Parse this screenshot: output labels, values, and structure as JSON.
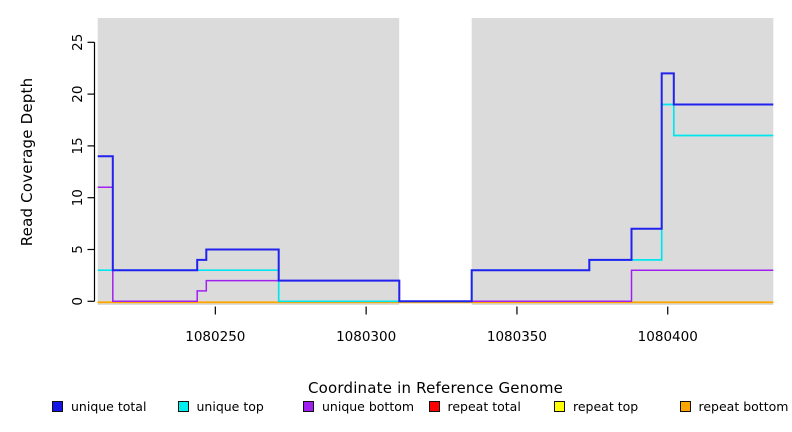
{
  "figure": {
    "background": "#ffffff",
    "panel_color": "#dbdbdb",
    "gap_color": "#ffffff"
  },
  "chart_data": {
    "type": "line",
    "subtype": "step",
    "title": "",
    "xlabel": "Coordinate in Reference Genome",
    "ylabel": "Read Coverage Depth",
    "xlim": [
      1080211,
      1080435
    ],
    "ylim": [
      0,
      27.4
    ],
    "x_ticks": [
      1080250,
      1080300,
      1080350,
      1080400
    ],
    "y_ticks": [
      0,
      5,
      10,
      15,
      20,
      25
    ],
    "grid": false,
    "legend_position": "bottom",
    "panel_bands": [
      {
        "from": 1080211,
        "to": 1080311,
        "color": "#dbdbdb"
      },
      {
        "from": 1080311,
        "to": 1080335,
        "color": "#ffffff"
      },
      {
        "from": 1080335,
        "to": 1080435,
        "color": "#dbdbdb"
      }
    ],
    "draw_order": [
      3,
      4,
      5,
      2,
      1,
      0
    ],
    "series": [
      {
        "name": "unique total",
        "group": "unique",
        "color": "#2222ee",
        "steps": [
          [
            1080211,
            14
          ],
          [
            1080216,
            3
          ],
          [
            1080244,
            4
          ],
          [
            1080247,
            5
          ],
          [
            1080271,
            2
          ],
          [
            1080311,
            0
          ],
          [
            1080335,
            3
          ],
          [
            1080374,
            4
          ],
          [
            1080388,
            7
          ],
          [
            1080398,
            22
          ],
          [
            1080402,
            19
          ],
          [
            1080435,
            19
          ]
        ]
      },
      {
        "name": "unique top",
        "group": "unique",
        "color": "#00e6ee",
        "steps": [
          [
            1080211,
            3
          ],
          [
            1080271,
            0
          ],
          [
            1080335,
            3
          ],
          [
            1080374,
            4
          ],
          [
            1080398,
            19
          ],
          [
            1080402,
            16
          ],
          [
            1080435,
            16
          ]
        ]
      },
      {
        "name": "unique bottom",
        "group": "unique",
        "color": "#a020f0",
        "steps": [
          [
            1080211,
            11
          ],
          [
            1080216,
            0
          ],
          [
            1080244,
            1
          ],
          [
            1080247,
            2
          ],
          [
            1080311,
            0
          ],
          [
            1080388,
            3
          ],
          [
            1080435,
            3
          ]
        ]
      },
      {
        "name": "repeat total",
        "group": "repeat",
        "color": "#ff0000",
        "steps": [
          [
            1080211,
            0
          ],
          [
            1080435,
            0
          ]
        ]
      },
      {
        "name": "repeat top",
        "group": "repeat",
        "color": "#ffff00",
        "steps": [
          [
            1080211,
            0
          ],
          [
            1080435,
            0
          ]
        ]
      },
      {
        "name": "repeat bottom",
        "group": "repeat",
        "color": "#ffa500",
        "steps": [
          [
            1080211,
            0
          ],
          [
            1080435,
            0
          ]
        ]
      }
    ],
    "legend": [
      {
        "label": "unique total",
        "color": "#1515e8"
      },
      {
        "label": "unique top",
        "color": "#00eeee"
      },
      {
        "label": "unique bottom",
        "color": "#a020f0"
      },
      {
        "label": "repeat total",
        "color": "#ff0000"
      },
      {
        "label": "repeat top",
        "color": "#ffff00"
      },
      {
        "label": "repeat bottom",
        "color": "#ffa500"
      }
    ]
  }
}
